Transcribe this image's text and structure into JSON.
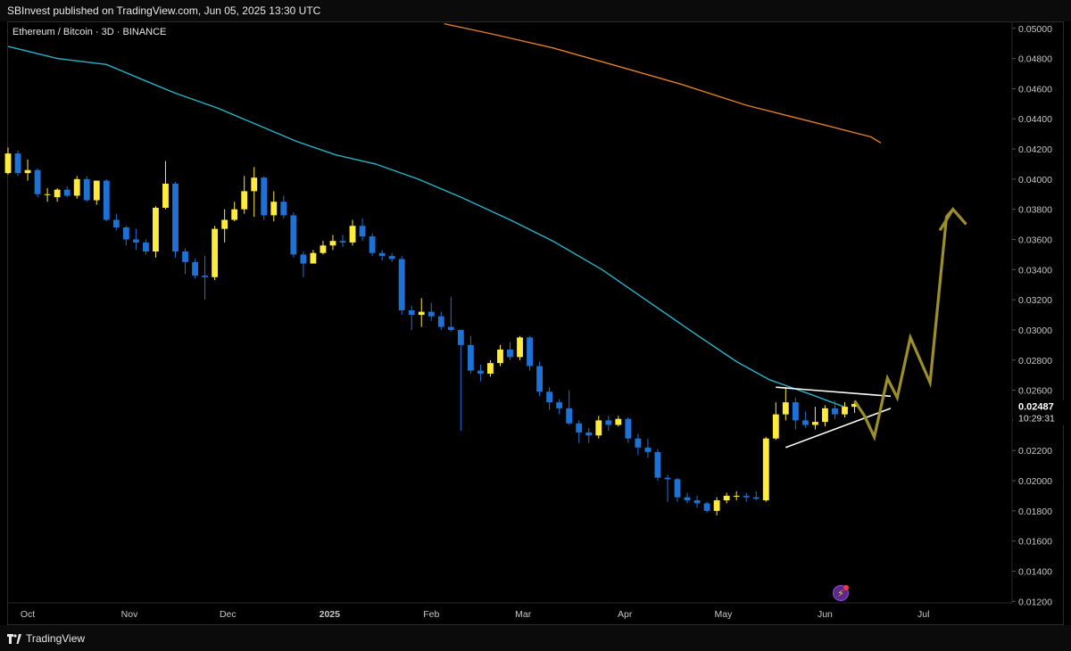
{
  "header": {
    "published": "SBInvest published on TradingView.com, Jun 05, 2025 13:30 UTC"
  },
  "chart_data": {
    "type": "candlestick",
    "symbol": "Ethereum / Bitcoin · 3D · BINANCE",
    "interval": "3D",
    "exchange": "BINANCE",
    "y_axis": {
      "min": 0.0119,
      "max": 0.0504,
      "ticks": [
        "0.05000",
        "0.04800",
        "0.04600",
        "0.04400",
        "0.04200",
        "0.04000",
        "0.03800",
        "0.03600",
        "0.03400",
        "0.03200",
        "0.03000",
        "0.02800",
        "0.02600",
        "0.02400",
        "0.02200",
        "0.02000",
        "0.01800",
        "0.01600",
        "0.01400",
        "0.01200"
      ],
      "current_price": "0.02487",
      "countdown": "10:29:31"
    },
    "x_axis": {
      "start": "2024-09-25",
      "end": "2025-07-28",
      "labels": [
        {
          "text": "Oct",
          "date": "2024-10-01"
        },
        {
          "text": "Nov",
          "date": "2024-11-01"
        },
        {
          "text": "Dec",
          "date": "2024-12-01"
        },
        {
          "text": "2025",
          "date": "2025-01-01"
        },
        {
          "text": "Feb",
          "date": "2025-02-01"
        },
        {
          "text": "Mar",
          "date": "2025-03-01"
        },
        {
          "text": "Apr",
          "date": "2025-04-01"
        },
        {
          "text": "May",
          "date": "2025-05-01"
        },
        {
          "text": "Jun",
          "date": "2025-06-01"
        },
        {
          "text": "Jul",
          "date": "2025-07-01"
        }
      ]
    },
    "colors": {
      "up": "#ffeb3b",
      "down": "#1e72d6",
      "ma_short": "#26b5c9",
      "ma_long": "#e0802b",
      "projection": "#9c8f2a",
      "pattern": "#ffffff"
    },
    "candles": [
      {
        "d": "2024-09-25",
        "o": 0.0404,
        "h": 0.0421,
        "l": 0.0403,
        "c": 0.0417
      },
      {
        "d": "2024-09-28",
        "o": 0.0417,
        "h": 0.0419,
        "l": 0.0402,
        "c": 0.0404
      },
      {
        "d": "2024-10-01",
        "o": 0.0404,
        "h": 0.0413,
        "l": 0.0399,
        "c": 0.0406
      },
      {
        "d": "2024-10-04",
        "o": 0.0406,
        "h": 0.0407,
        "l": 0.0388,
        "c": 0.039
      },
      {
        "d": "2024-10-07",
        "o": 0.039,
        "h": 0.0394,
        "l": 0.0385,
        "c": 0.039
      },
      {
        "d": "2024-10-10",
        "o": 0.0388,
        "h": 0.0394,
        "l": 0.0385,
        "c": 0.0393
      },
      {
        "d": "2024-10-13",
        "o": 0.0393,
        "h": 0.0395,
        "l": 0.0388,
        "c": 0.0389
      },
      {
        "d": "2024-10-16",
        "o": 0.0389,
        "h": 0.0402,
        "l": 0.0387,
        "c": 0.04
      },
      {
        "d": "2024-10-19",
        "o": 0.04,
        "h": 0.0402,
        "l": 0.0385,
        "c": 0.0386
      },
      {
        "d": "2024-10-22",
        "o": 0.0386,
        "h": 0.0399,
        "l": 0.0383,
        "c": 0.0399
      },
      {
        "d": "2024-10-25",
        "o": 0.0399,
        "h": 0.04,
        "l": 0.0372,
        "c": 0.0373
      },
      {
        "d": "2024-10-28",
        "o": 0.0373,
        "h": 0.0377,
        "l": 0.0366,
        "c": 0.0368
      },
      {
        "d": "2024-10-31",
        "o": 0.0368,
        "h": 0.0369,
        "l": 0.0356,
        "c": 0.036
      },
      {
        "d": "2024-11-03",
        "o": 0.036,
        "h": 0.0367,
        "l": 0.0353,
        "c": 0.0358
      },
      {
        "d": "2024-11-06",
        "o": 0.0358,
        "h": 0.036,
        "l": 0.035,
        "c": 0.0352
      },
      {
        "d": "2024-11-09",
        "o": 0.0352,
        "h": 0.0382,
        "l": 0.0348,
        "c": 0.0381
      },
      {
        "d": "2024-11-12",
        "o": 0.0381,
        "h": 0.0412,
        "l": 0.038,
        "c": 0.0397
      },
      {
        "d": "2024-11-15",
        "o": 0.0397,
        "h": 0.0398,
        "l": 0.0348,
        "c": 0.0352
      },
      {
        "d": "2024-11-18",
        "o": 0.0352,
        "h": 0.0354,
        "l": 0.0337,
        "c": 0.0345
      },
      {
        "d": "2024-11-21",
        "o": 0.0345,
        "h": 0.0347,
        "l": 0.0334,
        "c": 0.0336
      },
      {
        "d": "2024-11-24",
        "o": 0.0336,
        "h": 0.0349,
        "l": 0.032,
        "c": 0.0335
      },
      {
        "d": "2024-11-27",
        "o": 0.0335,
        "h": 0.0369,
        "l": 0.0333,
        "c": 0.0367
      },
      {
        "d": "2024-11-30",
        "o": 0.0367,
        "h": 0.038,
        "l": 0.0358,
        "c": 0.0373
      },
      {
        "d": "2024-12-03",
        "o": 0.0373,
        "h": 0.0385,
        "l": 0.0372,
        "c": 0.038
      },
      {
        "d": "2024-12-06",
        "o": 0.038,
        "h": 0.0402,
        "l": 0.0377,
        "c": 0.0392
      },
      {
        "d": "2024-12-09",
        "o": 0.0392,
        "h": 0.0408,
        "l": 0.0375,
        "c": 0.0401
      },
      {
        "d": "2024-12-12",
        "o": 0.0401,
        "h": 0.0402,
        "l": 0.0373,
        "c": 0.0376
      },
      {
        "d": "2024-12-15",
        "o": 0.0376,
        "h": 0.0392,
        "l": 0.0372,
        "c": 0.0385
      },
      {
        "d": "2024-12-18",
        "o": 0.0385,
        "h": 0.0389,
        "l": 0.0374,
        "c": 0.0376
      },
      {
        "d": "2024-12-21",
        "o": 0.0376,
        "h": 0.0378,
        "l": 0.0348,
        "c": 0.035
      },
      {
        "d": "2024-12-24",
        "o": 0.035,
        "h": 0.0352,
        "l": 0.0335,
        "c": 0.0344
      },
      {
        "d": "2024-12-27",
        "o": 0.0344,
        "h": 0.0353,
        "l": 0.0344,
        "c": 0.0351
      },
      {
        "d": "2024-12-30",
        "o": 0.0351,
        "h": 0.0359,
        "l": 0.035,
        "c": 0.0356
      },
      {
        "d": "2025-01-02",
        "o": 0.0356,
        "h": 0.0363,
        "l": 0.0353,
        "c": 0.0359
      },
      {
        "d": "2025-01-05",
        "o": 0.0359,
        "h": 0.0363,
        "l": 0.0355,
        "c": 0.0358
      },
      {
        "d": "2025-01-08",
        "o": 0.0358,
        "h": 0.0373,
        "l": 0.0356,
        "c": 0.0369
      },
      {
        "d": "2025-01-11",
        "o": 0.0369,
        "h": 0.0374,
        "l": 0.0359,
        "c": 0.0362
      },
      {
        "d": "2025-01-14",
        "o": 0.0362,
        "h": 0.0364,
        "l": 0.0349,
        "c": 0.0351
      },
      {
        "d": "2025-01-17",
        "o": 0.0351,
        "h": 0.0353,
        "l": 0.0346,
        "c": 0.0349
      },
      {
        "d": "2025-01-20",
        "o": 0.0349,
        "h": 0.0351,
        "l": 0.0345,
        "c": 0.0347
      },
      {
        "d": "2025-01-23",
        "o": 0.0347,
        "h": 0.0349,
        "l": 0.031,
        "c": 0.0313
      },
      {
        "d": "2025-01-26",
        "o": 0.0313,
        "h": 0.0316,
        "l": 0.03,
        "c": 0.031
      },
      {
        "d": "2025-01-29",
        "o": 0.031,
        "h": 0.0321,
        "l": 0.0302,
        "c": 0.0312
      },
      {
        "d": "2025-02-01",
        "o": 0.0312,
        "h": 0.0318,
        "l": 0.0306,
        "c": 0.0309
      },
      {
        "d": "2025-02-04",
        "o": 0.0309,
        "h": 0.0312,
        "l": 0.03,
        "c": 0.0302
      },
      {
        "d": "2025-02-07",
        "o": 0.0302,
        "h": 0.0322,
        "l": 0.0299,
        "c": 0.03
      },
      {
        "d": "2025-02-10",
        "o": 0.03,
        "h": 0.03,
        "l": 0.0233,
        "c": 0.029
      },
      {
        "d": "2025-02-13",
        "o": 0.029,
        "h": 0.0296,
        "l": 0.0271,
        "c": 0.0273
      },
      {
        "d": "2025-02-16",
        "o": 0.0273,
        "h": 0.0277,
        "l": 0.0266,
        "c": 0.0271
      },
      {
        "d": "2025-02-19",
        "o": 0.0271,
        "h": 0.028,
        "l": 0.0269,
        "c": 0.0278
      },
      {
        "d": "2025-02-22",
        "o": 0.0278,
        "h": 0.029,
        "l": 0.0276,
        "c": 0.0287
      },
      {
        "d": "2025-02-25",
        "o": 0.0287,
        "h": 0.0292,
        "l": 0.028,
        "c": 0.0282
      },
      {
        "d": "2025-02-28",
        "o": 0.0282,
        "h": 0.0296,
        "l": 0.028,
        "c": 0.0295
      },
      {
        "d": "2025-03-03",
        "o": 0.0295,
        "h": 0.0296,
        "l": 0.0273,
        "c": 0.0276
      },
      {
        "d": "2025-03-06",
        "o": 0.0276,
        "h": 0.0279,
        "l": 0.0256,
        "c": 0.0259
      },
      {
        "d": "2025-03-09",
        "o": 0.0259,
        "h": 0.0262,
        "l": 0.0247,
        "c": 0.0252
      },
      {
        "d": "2025-03-12",
        "o": 0.0252,
        "h": 0.0254,
        "l": 0.0244,
        "c": 0.0248
      },
      {
        "d": "2025-03-15",
        "o": 0.0248,
        "h": 0.026,
        "l": 0.0237,
        "c": 0.0238
      },
      {
        "d": "2025-03-18",
        "o": 0.0238,
        "h": 0.024,
        "l": 0.0225,
        "c": 0.0232
      },
      {
        "d": "2025-03-21",
        "o": 0.0232,
        "h": 0.0235,
        "l": 0.0225,
        "c": 0.023
      },
      {
        "d": "2025-03-24",
        "o": 0.023,
        "h": 0.0243,
        "l": 0.0228,
        "c": 0.024
      },
      {
        "d": "2025-03-27",
        "o": 0.024,
        "h": 0.0243,
        "l": 0.0233,
        "c": 0.0237
      },
      {
        "d": "2025-03-30",
        "o": 0.0237,
        "h": 0.0243,
        "l": 0.0236,
        "c": 0.0241
      },
      {
        "d": "2025-04-02",
        "o": 0.0241,
        "h": 0.0242,
        "l": 0.0225,
        "c": 0.0228
      },
      {
        "d": "2025-04-05",
        "o": 0.0228,
        "h": 0.0231,
        "l": 0.0217,
        "c": 0.0222
      },
      {
        "d": "2025-04-08",
        "o": 0.0222,
        "h": 0.0228,
        "l": 0.0215,
        "c": 0.0219
      },
      {
        "d": "2025-04-11",
        "o": 0.0219,
        "h": 0.0221,
        "l": 0.02,
        "c": 0.0202
      },
      {
        "d": "2025-04-14",
        "o": 0.0202,
        "h": 0.0204,
        "l": 0.0186,
        "c": 0.0201
      },
      {
        "d": "2025-04-17",
        "o": 0.0201,
        "h": 0.0202,
        "l": 0.0186,
        "c": 0.0189
      },
      {
        "d": "2025-04-20",
        "o": 0.0189,
        "h": 0.0192,
        "l": 0.0185,
        "c": 0.0187
      },
      {
        "d": "2025-04-23",
        "o": 0.0187,
        "h": 0.019,
        "l": 0.0182,
        "c": 0.0185
      },
      {
        "d": "2025-04-26",
        "o": 0.0185,
        "h": 0.0186,
        "l": 0.0179,
        "c": 0.018
      },
      {
        "d": "2025-04-29",
        "o": 0.018,
        "h": 0.0189,
        "l": 0.0177,
        "c": 0.0187
      },
      {
        "d": "2025-05-02",
        "o": 0.0187,
        "h": 0.0192,
        "l": 0.0185,
        "c": 0.019
      },
      {
        "d": "2025-05-05",
        "o": 0.019,
        "h": 0.0193,
        "l": 0.0187,
        "c": 0.019
      },
      {
        "d": "2025-05-08",
        "o": 0.019,
        "h": 0.0192,
        "l": 0.0186,
        "c": 0.0189
      },
      {
        "d": "2025-05-11",
        "o": 0.0189,
        "h": 0.0193,
        "l": 0.0187,
        "c": 0.0188
      },
      {
        "d": "2025-05-14",
        "o": 0.0187,
        "h": 0.0229,
        "l": 0.0186,
        "c": 0.0228
      },
      {
        "d": "2025-05-17",
        "o": 0.0228,
        "h": 0.0252,
        "l": 0.0227,
        "c": 0.0244
      },
      {
        "d": "2025-05-20",
        "o": 0.0244,
        "h": 0.0262,
        "l": 0.024,
        "c": 0.0252
      },
      {
        "d": "2025-05-23",
        "o": 0.0252,
        "h": 0.0255,
        "l": 0.0234,
        "c": 0.024
      },
      {
        "d": "2025-05-26",
        "o": 0.024,
        "h": 0.0246,
        "l": 0.0235,
        "c": 0.0237
      },
      {
        "d": "2025-05-29",
        "o": 0.0237,
        "h": 0.0249,
        "l": 0.0234,
        "c": 0.0239
      },
      {
        "d": "2025-06-01",
        "o": 0.0239,
        "h": 0.025,
        "l": 0.0236,
        "c": 0.0248
      },
      {
        "d": "2025-06-04",
        "o": 0.0248,
        "h": 0.0253,
        "l": 0.0241,
        "c": 0.0244
      },
      {
        "d": "2025-06-07",
        "o": 0.0244,
        "h": 0.0252,
        "l": 0.0242,
        "c": 0.0249
      },
      {
        "d": "2025-06-10",
        "o": 0.0249,
        "h": 0.0253,
        "l": 0.0245,
        "c": 0.0251
      }
    ],
    "ma_short": [
      {
        "d": "2024-09-25",
        "v": 0.0488
      },
      {
        "d": "2024-10-10",
        "v": 0.048
      },
      {
        "d": "2024-10-25",
        "v": 0.0476
      },
      {
        "d": "2024-11-05",
        "v": 0.0466
      },
      {
        "d": "2024-11-15",
        "v": 0.0457
      },
      {
        "d": "2024-11-28",
        "v": 0.0447
      },
      {
        "d": "2024-12-10",
        "v": 0.0436
      },
      {
        "d": "2024-12-22",
        "v": 0.0425
      },
      {
        "d": "2025-01-03",
        "v": 0.0416
      },
      {
        "d": "2025-01-15",
        "v": 0.041
      },
      {
        "d": "2025-01-28",
        "v": 0.04
      },
      {
        "d": "2025-02-10",
        "v": 0.0388
      },
      {
        "d": "2025-02-25",
        "v": 0.0373
      },
      {
        "d": "2025-03-10",
        "v": 0.0359
      },
      {
        "d": "2025-03-25",
        "v": 0.034
      },
      {
        "d": "2025-04-08",
        "v": 0.0319
      },
      {
        "d": "2025-04-22",
        "v": 0.0298
      },
      {
        "d": "2025-05-05",
        "v": 0.0279
      },
      {
        "d": "2025-05-15",
        "v": 0.0267
      },
      {
        "d": "2025-05-28",
        "v": 0.0257
      },
      {
        "d": "2025-06-08",
        "v": 0.0248
      }
    ],
    "ma_long": [
      {
        "d": "2025-02-05",
        "v": 0.0503
      },
      {
        "d": "2025-02-20",
        "v": 0.0496
      },
      {
        "d": "2025-03-10",
        "v": 0.0487
      },
      {
        "d": "2025-03-28",
        "v": 0.0476
      },
      {
        "d": "2025-04-18",
        "v": 0.0463
      },
      {
        "d": "2025-05-08",
        "v": 0.0449
      },
      {
        "d": "2025-05-28",
        "v": 0.0438
      },
      {
        "d": "2025-06-15",
        "v": 0.0428
      },
      {
        "d": "2025-06-18",
        "v": 0.0424
      }
    ],
    "triangle": {
      "upper": [
        {
          "d": "2025-05-17",
          "v": 0.0262
        },
        {
          "d": "2025-06-21",
          "v": 0.0256
        }
      ],
      "lower": [
        {
          "d": "2025-05-20",
          "v": 0.0222
        },
        {
          "d": "2025-06-21",
          "v": 0.0248
        }
      ]
    },
    "projection": [
      {
        "d": "2025-06-10",
        "v": 0.0253
      },
      {
        "d": "2025-06-13",
        "v": 0.0243
      },
      {
        "d": "2025-06-16",
        "v": 0.0229
      },
      {
        "d": "2025-06-20",
        "v": 0.0268
      },
      {
        "d": "2025-06-23",
        "v": 0.0255
      },
      {
        "d": "2025-06-27",
        "v": 0.0295
      },
      {
        "d": "2025-07-03",
        "v": 0.0265
      },
      {
        "d": "2025-07-08",
        "v": 0.0375
      },
      {
        "d": "2025-07-10",
        "v": 0.038
      }
    ],
    "projection_arrow": [
      {
        "d": "2025-07-06",
        "v": 0.0366
      },
      {
        "d": "2025-07-10",
        "v": 0.038
      },
      {
        "d": "2025-07-14",
        "v": 0.037
      }
    ]
  },
  "footer": {
    "brand": "TradingView"
  }
}
